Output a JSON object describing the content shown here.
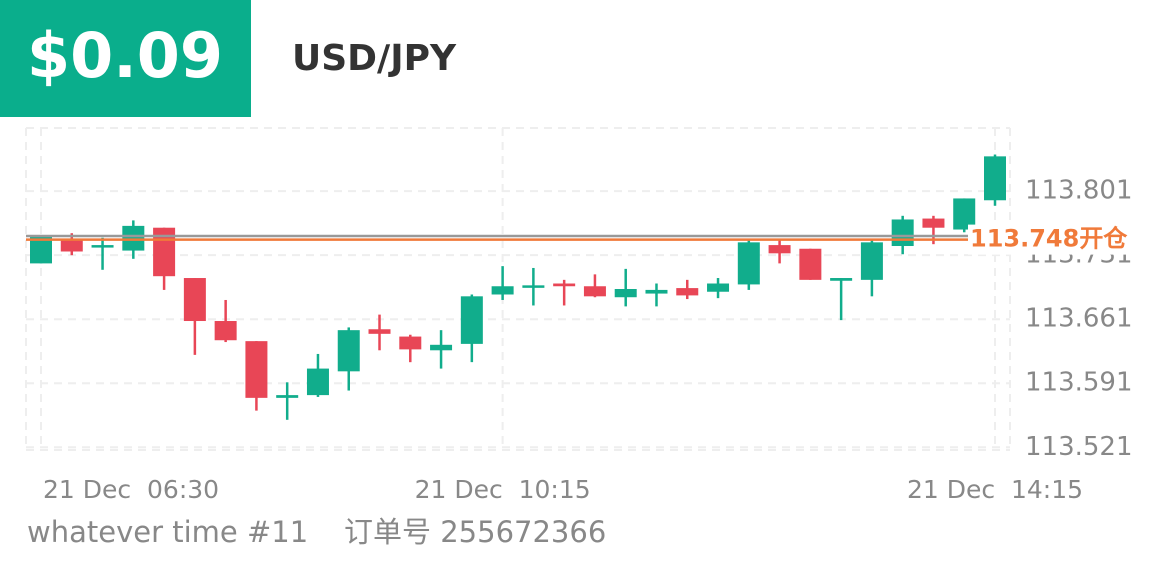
{
  "header": {
    "price": "$0.09",
    "pair": "USD/JPY"
  },
  "chart_data": {
    "type": "candlestick",
    "categories": [
      "21 Dec  06:30",
      null,
      null,
      null,
      null,
      null,
      null,
      null,
      null,
      null,
      null,
      null,
      null,
      null,
      null,
      "21 Dec  10:15",
      null,
      null,
      null,
      null,
      null,
      null,
      null,
      null,
      null,
      null,
      null,
      null,
      null,
      null,
      null,
      "21 Dec  14:15"
    ],
    "open": [
      113.722,
      113.747,
      113.74,
      113.736,
      113.761,
      113.706,
      113.659,
      113.637,
      113.575,
      113.578,
      113.604,
      113.65,
      113.642,
      113.627,
      113.634,
      113.688,
      113.696,
      113.7,
      113.697,
      113.685,
      113.689,
      113.695,
      113.691,
      113.699,
      113.742,
      113.738,
      113.703,
      113.704,
      113.741,
      113.771,
      113.759,
      113.791
    ],
    "high": [
      113.753,
      113.755,
      113.75,
      113.769,
      113.761,
      113.706,
      113.682,
      113.637,
      113.592,
      113.623,
      113.652,
      113.666,
      113.644,
      113.649,
      113.688,
      113.719,
      113.717,
      113.704,
      113.71,
      113.716,
      113.7,
      113.704,
      113.706,
      113.747,
      113.747,
      113.738,
      113.706,
      113.747,
      113.774,
      113.774,
      113.793,
      113.841
    ],
    "low": [
      113.722,
      113.731,
      113.715,
      113.727,
      113.693,
      113.622,
      113.636,
      113.561,
      113.551,
      113.576,
      113.583,
      113.627,
      113.614,
      113.607,
      113.614,
      113.682,
      113.676,
      113.676,
      113.685,
      113.675,
      113.675,
      113.683,
      113.684,
      113.693,
      113.722,
      113.704,
      113.66,
      113.686,
      113.732,
      113.743,
      113.756,
      113.785
    ],
    "close": [
      113.751,
      113.735,
      113.742,
      113.763,
      113.708,
      113.659,
      113.638,
      113.575,
      113.578,
      113.607,
      113.649,
      113.645,
      113.628,
      113.633,
      113.686,
      113.697,
      113.698,
      113.697,
      113.686,
      113.694,
      113.693,
      113.687,
      113.7,
      113.745,
      113.733,
      113.704,
      113.706,
      113.745,
      113.77,
      113.761,
      113.793,
      113.839
    ],
    "up_color": "#11ad8c",
    "down_color": "#e84656",
    "ylim": [
      113.518,
      113.87
    ],
    "yticks": [
      113.521,
      113.591,
      113.661,
      113.731,
      113.801
    ],
    "grid": true,
    "price_line": {
      "value": 113.752,
      "color": "#999999"
    },
    "open_line": {
      "value": 113.748,
      "label": "113.748开仓",
      "color": "#f07a3a"
    }
  },
  "footer": {
    "left": "whatever time #11",
    "right": "订单号 255672366"
  }
}
